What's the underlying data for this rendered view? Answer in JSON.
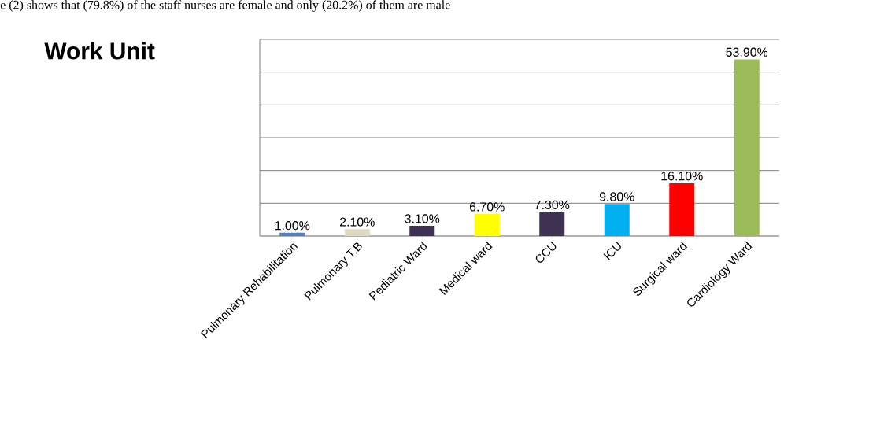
{
  "chart_data": {
    "type": "bar",
    "title": "Work Unit",
    "annotations": [
      "e (2) shows that (79.8%) of the staff nurses are female and only (20.2%) of them are male"
    ],
    "categories": [
      "Pulmonary Rehabilitation",
      "Pulmonary T.B",
      "Pediatric Ward",
      "Medical ward",
      "CCU",
      "ICU",
      "Surgical ward",
      "Cardiology Ward"
    ],
    "values": [
      1.0,
      2.1,
      3.1,
      6.7,
      7.3,
      9.8,
      16.1,
      53.9
    ],
    "value_labels": [
      "1.00%",
      "2.10%",
      "3.10%",
      "6.70%",
      "7.30%",
      "9.80%",
      "16.10%",
      "53.90%"
    ],
    "colors": [
      "#4f81bd",
      "#ddd9c3",
      "#3f3151",
      "#ffff00",
      "#3f3151",
      "#00b0f0",
      "#ff0000",
      "#9bbb59"
    ],
    "ylim": [
      0,
      60
    ],
    "yticks": [
      {
        "value": 0,
        "label": null
      },
      {
        "value": 10,
        "label": null
      },
      {
        "value": 20,
        "label": null
      },
      {
        "value": 30,
        "label": null
      },
      {
        "value": 40,
        "label": null
      },
      {
        "value": 50,
        "label": null
      },
      {
        "value": 60,
        "label": null
      }
    ],
    "grid": "y",
    "tick_labels": "x"
  }
}
